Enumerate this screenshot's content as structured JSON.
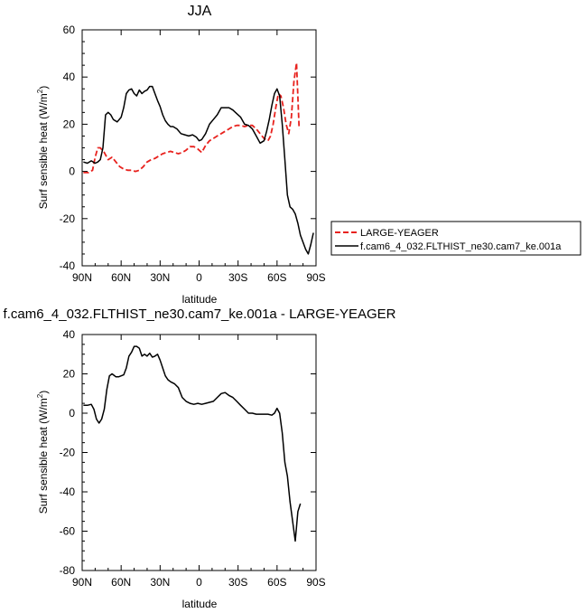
{
  "chart_data": [
    {
      "type": "line",
      "title": "JJA",
      "xlabel": "latitude",
      "ylabel": "Surf sensible heat (W/m",
      "ylabel_sup": "2",
      "ylabel_close": ")",
      "xlim": [
        90,
        -90
      ],
      "ylim": [
        -40,
        60
      ],
      "xticks": [
        90,
        60,
        30,
        0,
        -30,
        -60,
        -90
      ],
      "xtick_labels": [
        "90N",
        "60N",
        "30N",
        "0",
        "30S",
        "60S",
        "90S"
      ],
      "yticks": [
        -40,
        -20,
        0,
        20,
        40,
        60
      ],
      "ytick_labels": [
        "-40",
        "-20",
        "0",
        "20",
        "40",
        "60"
      ],
      "grid": false,
      "legend_position": "right, outside plot",
      "series": [
        {
          "name": "LARGE-YEAGER",
          "color": "#e8221e",
          "dash": true,
          "x": [
            89,
            85,
            82,
            80,
            78,
            76,
            73,
            70,
            67,
            64,
            61,
            58,
            55,
            52,
            49,
            46,
            43,
            40,
            37,
            34,
            31,
            28,
            25,
            22,
            19,
            16,
            13,
            10,
            7,
            4,
            1,
            -2,
            -5,
            -8,
            -11,
            -14,
            -17,
            -20,
            -23,
            -26,
            -29,
            -32,
            -35,
            -38,
            -41,
            -44,
            -47,
            -50,
            -53,
            -55,
            -57,
            -59,
            -61,
            -63,
            -65,
            -67,
            -69,
            -71,
            -73,
            -75,
            -77
          ],
          "values": [
            -0.5,
            -0.5,
            0.5,
            6,
            10,
            10,
            8,
            5,
            6,
            4,
            2,
            1,
            0.5,
            0.5,
            0,
            0.5,
            2,
            4,
            5,
            5.5,
            6.5,
            7.5,
            8,
            8.5,
            8,
            7.5,
            8,
            9,
            10.5,
            10.5,
            9.5,
            8,
            11,
            13,
            14,
            15,
            16,
            17,
            18,
            19,
            19.5,
            19.5,
            19,
            19.5,
            19.5,
            18,
            16,
            14,
            13,
            15,
            20,
            27,
            33,
            32,
            27,
            20,
            16,
            23,
            38,
            46,
            18
          ]
        },
        {
          "name": "f.cam6_4_032.FLTHIST_ne30.cam7_ke.001a",
          "color": "#000000",
          "dash": false,
          "x": [
            89,
            86,
            83,
            80,
            78,
            76,
            74,
            72,
            70,
            68,
            66,
            63,
            60,
            58,
            56,
            54,
            52,
            50,
            48,
            46,
            44,
            42,
            40,
            38,
            36,
            34,
            32,
            30,
            28,
            26,
            24,
            22,
            20,
            17,
            14,
            11,
            8,
            5,
            2,
            0,
            -2,
            -5,
            -8,
            -11,
            -14,
            -17,
            -20,
            -23,
            -26,
            -29,
            -32,
            -35,
            -38,
            -41,
            -44,
            -47,
            -50,
            -52,
            -54,
            -56,
            -58,
            -60,
            -62,
            -64,
            -66,
            -68,
            -70,
            -72,
            -74,
            -76,
            -78,
            -80,
            -82,
            -84,
            -86,
            -88
          ],
          "values": [
            4,
            3.5,
            4.5,
            3.5,
            4,
            5,
            10,
            24,
            25,
            24,
            22,
            21,
            23,
            27,
            33,
            34.5,
            35,
            33,
            32,
            34.5,
            33,
            34,
            34.5,
            36,
            36,
            33,
            30,
            27.5,
            24,
            21.5,
            20,
            19,
            19,
            18,
            16,
            15.5,
            15,
            15.5,
            14.5,
            13,
            13.5,
            16,
            20,
            22,
            24,
            27,
            27,
            27,
            26,
            24.5,
            23,
            20,
            19.5,
            18,
            15,
            12,
            13,
            17,
            22,
            28,
            33,
            35,
            32,
            20,
            5,
            -10,
            -15,
            -16,
            -18,
            -22,
            -27,
            -30,
            -33,
            -35,
            -31,
            -26
          ]
        }
      ]
    },
    {
      "type": "line",
      "title": "f.cam6_4_032.FLTHIST_ne30.cam7_ke.001a - LARGE-YEAGER",
      "xlabel": "latitude",
      "ylabel": "Surf sensible heat (W/m",
      "ylabel_sup": "2",
      "ylabel_close": ")",
      "xlim": [
        90,
        -90
      ],
      "ylim": [
        -80,
        40
      ],
      "xticks": [
        90,
        60,
        30,
        0,
        -30,
        -60,
        -90
      ],
      "xtick_labels": [
        "90N",
        "60N",
        "30N",
        "0",
        "30S",
        "60S",
        "90S"
      ],
      "yticks": [
        -80,
        -60,
        -40,
        -20,
        0,
        20,
        40
      ],
      "ytick_labels": [
        "-80",
        "-60",
        "-40",
        "-20",
        "0",
        "20",
        "40"
      ],
      "grid": false,
      "series": [
        {
          "color": "#000000",
          "dash": false,
          "x": [
            89,
            86,
            83,
            81,
            79,
            77,
            75,
            73,
            71,
            69,
            67,
            64,
            62,
            60,
            58,
            56,
            54,
            52,
            50,
            48,
            46,
            44,
            42,
            40,
            38,
            36,
            34,
            32,
            30,
            28,
            26,
            24,
            22,
            19,
            16,
            13,
            10,
            7,
            4,
            1,
            -2,
            -5,
            -8,
            -11,
            -14,
            -17,
            -20,
            -23,
            -26,
            -29,
            -32,
            -35,
            -38,
            -41,
            -44,
            -47,
            -50,
            -53,
            -56,
            -58,
            -60,
            -62,
            -64,
            -66,
            -68,
            -70,
            -72,
            -74,
            -76,
            -78
          ],
          "values": [
            4,
            4,
            4.5,
            2,
            -3,
            -5,
            -3,
            2,
            12,
            19,
            20,
            18.5,
            18.5,
            19,
            19.5,
            23,
            29,
            31,
            34,
            34,
            33,
            29,
            30,
            29,
            30.5,
            28.5,
            29,
            30,
            27,
            23,
            19,
            17,
            16,
            15,
            13,
            8,
            6,
            5,
            4.5,
            5,
            4.5,
            5,
            5.5,
            6,
            8,
            10,
            10.5,
            9,
            8,
            6,
            4,
            2,
            0,
            0,
            -0.5,
            -0.5,
            -0.5,
            -0.5,
            -1,
            0,
            2.5,
            0,
            -10,
            -25,
            -32,
            -45,
            -55,
            -65,
            -50,
            -46
          ]
        }
      ]
    }
  ]
}
